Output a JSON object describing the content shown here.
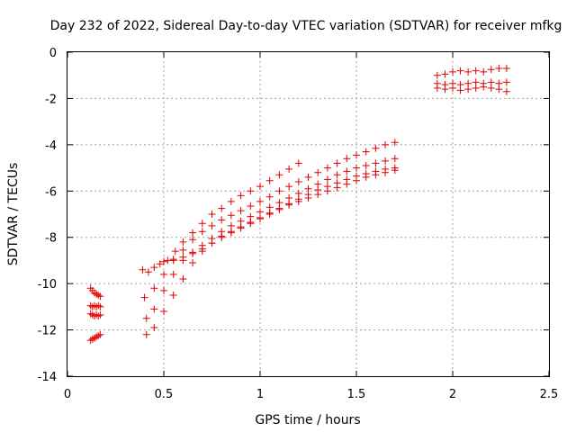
{
  "chart_data": {
    "type": "scatter",
    "title": "Day 232 of 2022, Sidereal Day-to-day VTEC variation (SDTVAR) for receiver mfkg",
    "xlabel": "GPS time / hours",
    "ylabel": "SDTVAR / TECUs",
    "xlim": [
      0,
      2.5
    ],
    "ylim": [
      -14,
      0
    ],
    "xticks": [
      0,
      0.5,
      1,
      1.5,
      2,
      2.5
    ],
    "xtick_labels": [
      "0",
      "0.5",
      "1",
      "1.5",
      "2",
      "2.5"
    ],
    "yticks": [
      0,
      -2,
      -4,
      -6,
      -8,
      -10,
      -12,
      -14
    ],
    "ytick_labels": [
      "0",
      "-2",
      "-4",
      "-6",
      "-8",
      "-10",
      "-12",
      "-14"
    ],
    "grid": true,
    "marker": "plus",
    "color": "#e00000",
    "series": [
      {
        "x": [
          0.12,
          0.13,
          0.14,
          0.15,
          0.16,
          0.17
        ],
        "y": [
          -10.2,
          -10.3,
          -10.4,
          -10.45,
          -10.5,
          -10.55
        ]
      },
      {
        "x": [
          0.12,
          0.13,
          0.14,
          0.15,
          0.16,
          0.17
        ],
        "y": [
          -10.95,
          -11.0,
          -10.95,
          -11.0,
          -10.95,
          -11.0
        ]
      },
      {
        "x": [
          0.12,
          0.13,
          0.14,
          0.15,
          0.16,
          0.17
        ],
        "y": [
          -11.3,
          -11.35,
          -11.4,
          -11.35,
          -11.4,
          -11.35
        ]
      },
      {
        "x": [
          0.12,
          0.13,
          0.14,
          0.15,
          0.16,
          0.17
        ],
        "y": [
          -12.45,
          -12.4,
          -12.35,
          -12.3,
          -12.25,
          -12.2
        ]
      },
      {
        "x": [
          0.39,
          0.42,
          0.45,
          0.48,
          0.52,
          0.56,
          0.6,
          0.65,
          0.7,
          0.75,
          0.8,
          0.85,
          0.9,
          0.95,
          1.0,
          1.05,
          1.1,
          1.15,
          1.2
        ],
        "y": [
          -9.4,
          -9.5,
          -9.3,
          -9.15,
          -9.0,
          -8.6,
          -8.2,
          -7.8,
          -7.4,
          -7.0,
          -6.75,
          -6.45,
          -6.2,
          -6.0,
          -5.8,
          -5.55,
          -5.3,
          -5.05,
          -4.8
        ]
      },
      {
        "x": [
          0.4,
          0.45,
          0.5,
          0.55,
          0.6,
          0.65,
          0.7,
          0.75,
          0.8,
          0.85,
          0.9,
          0.95,
          1.0,
          1.05,
          1.1,
          1.15,
          1.2,
          1.25,
          1.3,
          1.35,
          1.4,
          1.45,
          1.5,
          1.55,
          1.6,
          1.65,
          1.7
        ],
        "y": [
          -10.6,
          -10.2,
          -9.6,
          -9.0,
          -8.55,
          -8.1,
          -7.75,
          -7.5,
          -7.25,
          -7.05,
          -6.85,
          -6.65,
          -6.45,
          -6.25,
          -6.0,
          -5.8,
          -5.6,
          -5.4,
          -5.2,
          -5.0,
          -4.8,
          -4.6,
          -4.45,
          -4.3,
          -4.15,
          -4.0,
          -3.9
        ]
      },
      {
        "x": [
          0.41,
          0.45,
          0.5,
          0.55,
          0.6,
          0.65,
          0.7,
          0.75,
          0.8,
          0.85,
          0.9,
          0.95,
          1.0,
          1.05,
          1.1,
          1.15,
          1.2,
          1.25,
          1.3,
          1.35,
          1.4,
          1.45,
          1.5,
          1.55,
          1.6,
          1.65,
          1.7
        ],
        "y": [
          -11.5,
          -11.1,
          -10.3,
          -9.6,
          -9.0,
          -8.65,
          -8.35,
          -8.05,
          -7.75,
          -7.5,
          -7.3,
          -7.1,
          -6.9,
          -6.7,
          -6.5,
          -6.3,
          -6.1,
          -5.9,
          -5.7,
          -5.5,
          -5.3,
          -5.15,
          -5.0,
          -4.9,
          -4.8,
          -4.7,
          -4.6
        ]
      },
      {
        "x": [
          0.41,
          0.45,
          0.5,
          0.55,
          0.6,
          0.65,
          0.7,
          0.75,
          0.8,
          0.85,
          0.9,
          0.95,
          1.0,
          1.05,
          1.1,
          1.15,
          1.2,
          1.25,
          1.3,
          1.35,
          1.4,
          1.45,
          1.5,
          1.55,
          1.6,
          1.65,
          1.7
        ],
        "y": [
          -12.2,
          -11.9,
          -11.2,
          -10.5,
          -9.8,
          -9.1,
          -8.6,
          -8.25,
          -7.95,
          -7.75,
          -7.55,
          -7.35,
          -7.15,
          -6.95,
          -6.75,
          -6.55,
          -6.35,
          -6.15,
          -5.95,
          -5.8,
          -5.65,
          -5.5,
          -5.35,
          -5.25,
          -5.15,
          -5.05,
          -5.0
        ]
      },
      {
        "x": [
          0.5,
          0.55,
          0.6,
          0.65,
          0.7,
          0.75,
          0.8,
          0.85,
          0.9,
          0.95,
          1.0,
          1.05,
          1.1,
          1.15,
          1.2,
          1.25,
          1.3,
          1.35,
          1.4,
          1.45,
          1.5,
          1.55,
          1.6,
          1.65,
          1.7
        ],
        "y": [
          -9.05,
          -8.95,
          -8.85,
          -8.7,
          -8.5,
          -8.25,
          -8.0,
          -7.8,
          -7.6,
          -7.4,
          -7.2,
          -7.0,
          -6.8,
          -6.6,
          -6.45,
          -6.3,
          -6.15,
          -6.0,
          -5.85,
          -5.7,
          -5.55,
          -5.4,
          -5.3,
          -5.2,
          -5.1
        ]
      },
      {
        "x": [
          1.92,
          1.96,
          2.0,
          2.04,
          2.08,
          2.12,
          2.16,
          2.2,
          2.24,
          2.28
        ],
        "y": [
          -1.0,
          -0.95,
          -0.85,
          -0.8,
          -0.85,
          -0.8,
          -0.85,
          -0.75,
          -0.7,
          -0.7
        ]
      },
      {
        "x": [
          1.92,
          1.96,
          2.0,
          2.04,
          2.08,
          2.12,
          2.16,
          2.2,
          2.24,
          2.28
        ],
        "y": [
          -1.35,
          -1.4,
          -1.35,
          -1.4,
          -1.35,
          -1.3,
          -1.35,
          -1.3,
          -1.35,
          -1.3
        ]
      },
      {
        "x": [
          1.92,
          1.96,
          2.0,
          2.04,
          2.08,
          2.12,
          2.16,
          2.2,
          2.24,
          2.28
        ],
        "y": [
          -1.55,
          -1.6,
          -1.55,
          -1.65,
          -1.6,
          -1.55,
          -1.5,
          -1.55,
          -1.6,
          -1.7
        ]
      }
    ]
  }
}
